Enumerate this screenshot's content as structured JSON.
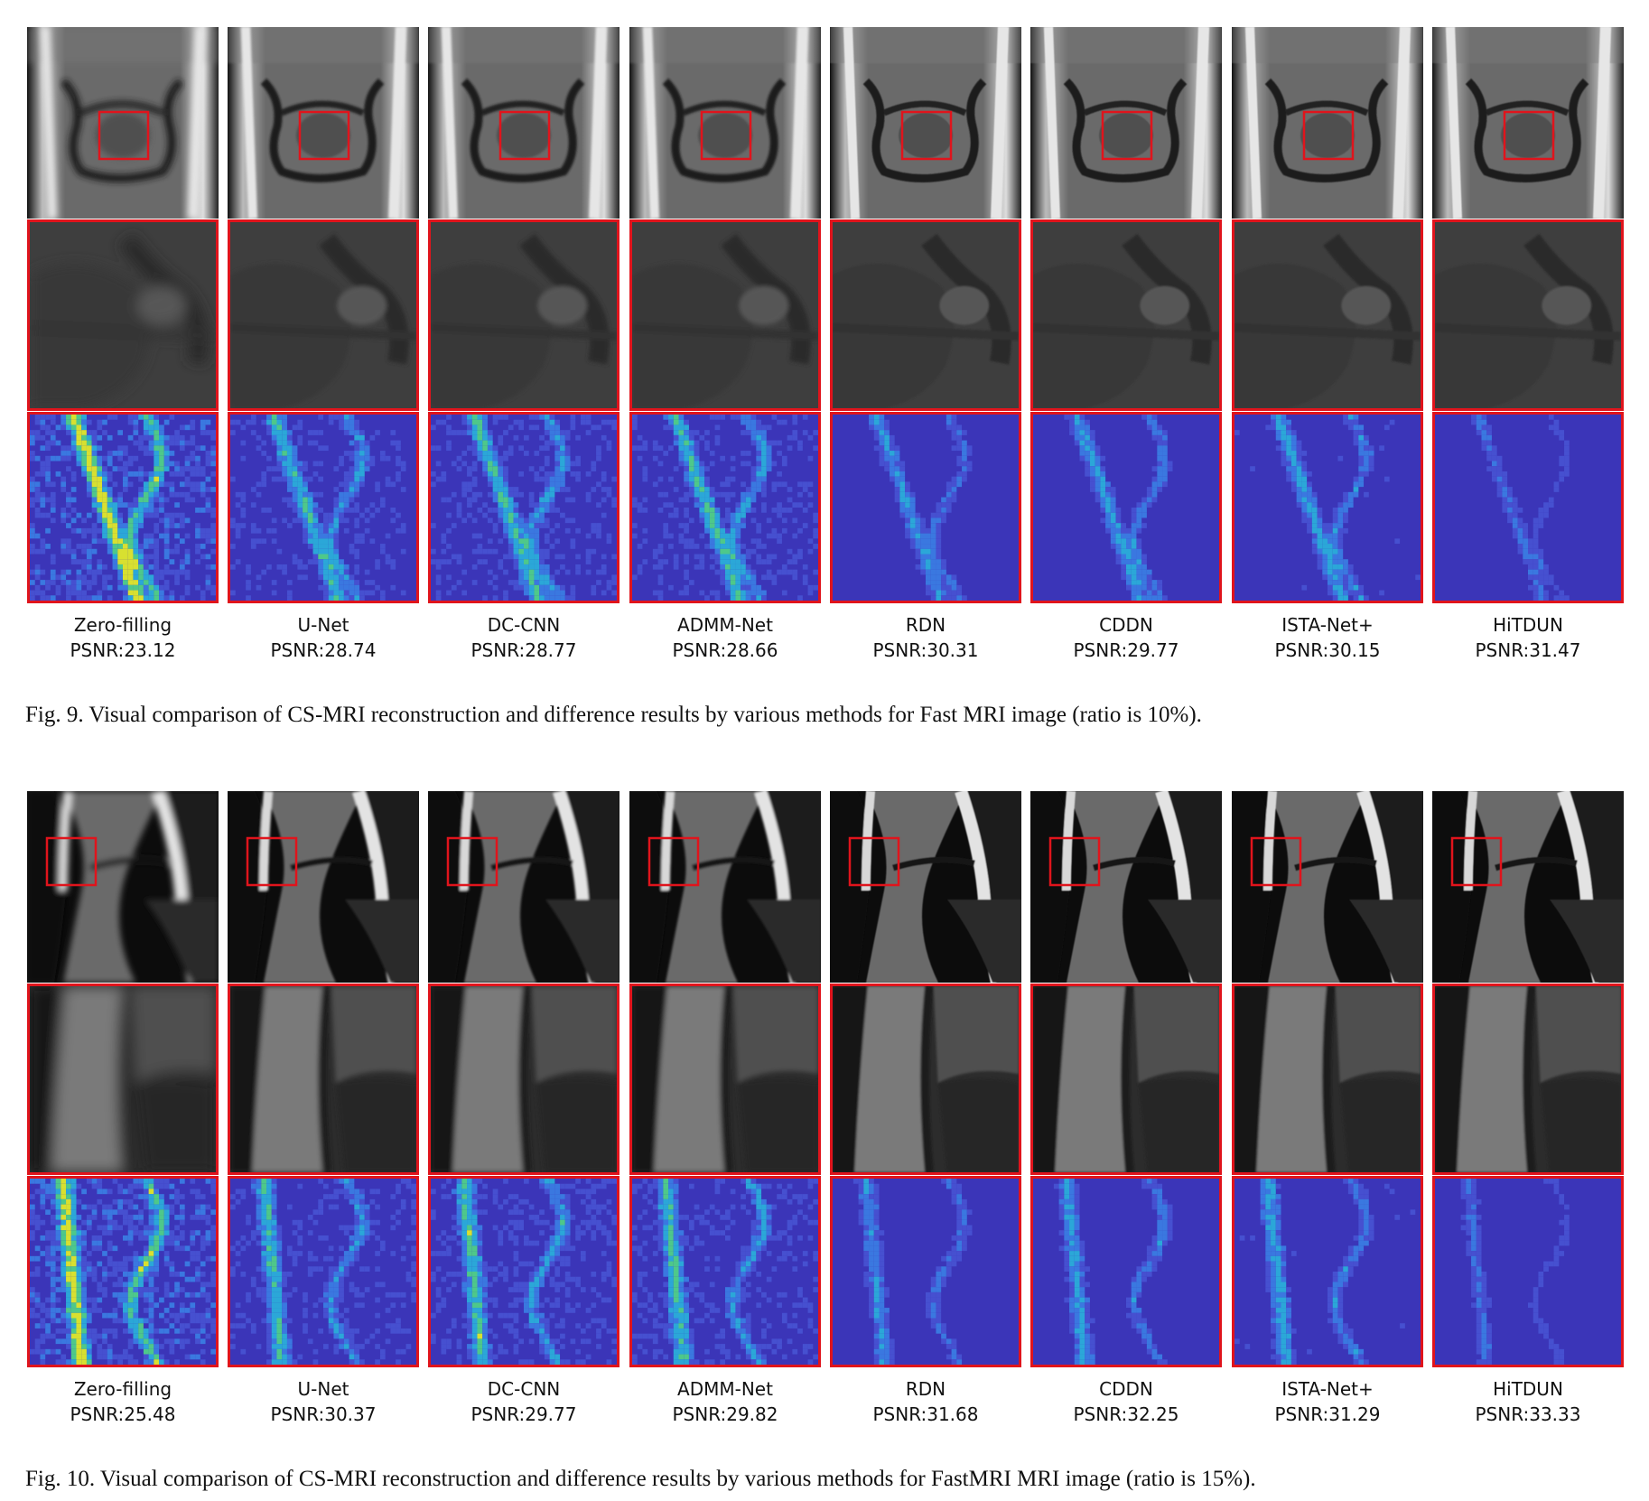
{
  "figures": [
    {
      "id": "fig9",
      "caption": "Fig. 9.  Visual comparison of CS-MRI reconstruction and difference results by various methods for Fast MRI image (ratio is 10%).",
      "methods": [
        {
          "name": "Zero-filling",
          "psnr": "PSNR:23.12"
        },
        {
          "name": "U-Net",
          "psnr": "PSNR:28.74"
        },
        {
          "name": "DC-CNN",
          "psnr": "PSNR:28.77"
        },
        {
          "name": "ADMM-Net",
          "psnr": "PSNR:28.66"
        },
        {
          "name": "RDN",
          "psnr": "PSNR:30.31"
        },
        {
          "name": "CDDN",
          "psnr": "PSNR:29.77"
        },
        {
          "name": "ISTA-Net+",
          "psnr": "PSNR:30.15"
        },
        {
          "name": "HiTDUN",
          "psnr": "PSNR:31.47"
        }
      ]
    },
    {
      "id": "fig10",
      "caption": "Fig. 10.  Visual comparison of CS-MRI reconstruction and difference results by various methods for FastMRI MRI image (ratio is 15%).",
      "methods": [
        {
          "name": "Zero-filling",
          "psnr": "PSNR:25.48"
        },
        {
          "name": "U-Net",
          "psnr": "PSNR:30.37"
        },
        {
          "name": "DC-CNN",
          "psnr": "PSNR:29.77"
        },
        {
          "name": "ADMM-Net",
          "psnr": "PSNR:29.82"
        },
        {
          "name": "RDN",
          "psnr": "PSNR:31.68"
        },
        {
          "name": "CDDN",
          "psnr": "PSNR:32.25"
        },
        {
          "name": "ISTA-Net+",
          "psnr": "PSNR:31.29"
        },
        {
          "name": "HiTDUN",
          "psnr": "PSNR:33.33"
        }
      ]
    }
  ],
  "colors": {
    "roi_box": "#e0141c",
    "diff_background": "#3b35b8",
    "diff_high": "#e8e030"
  }
}
